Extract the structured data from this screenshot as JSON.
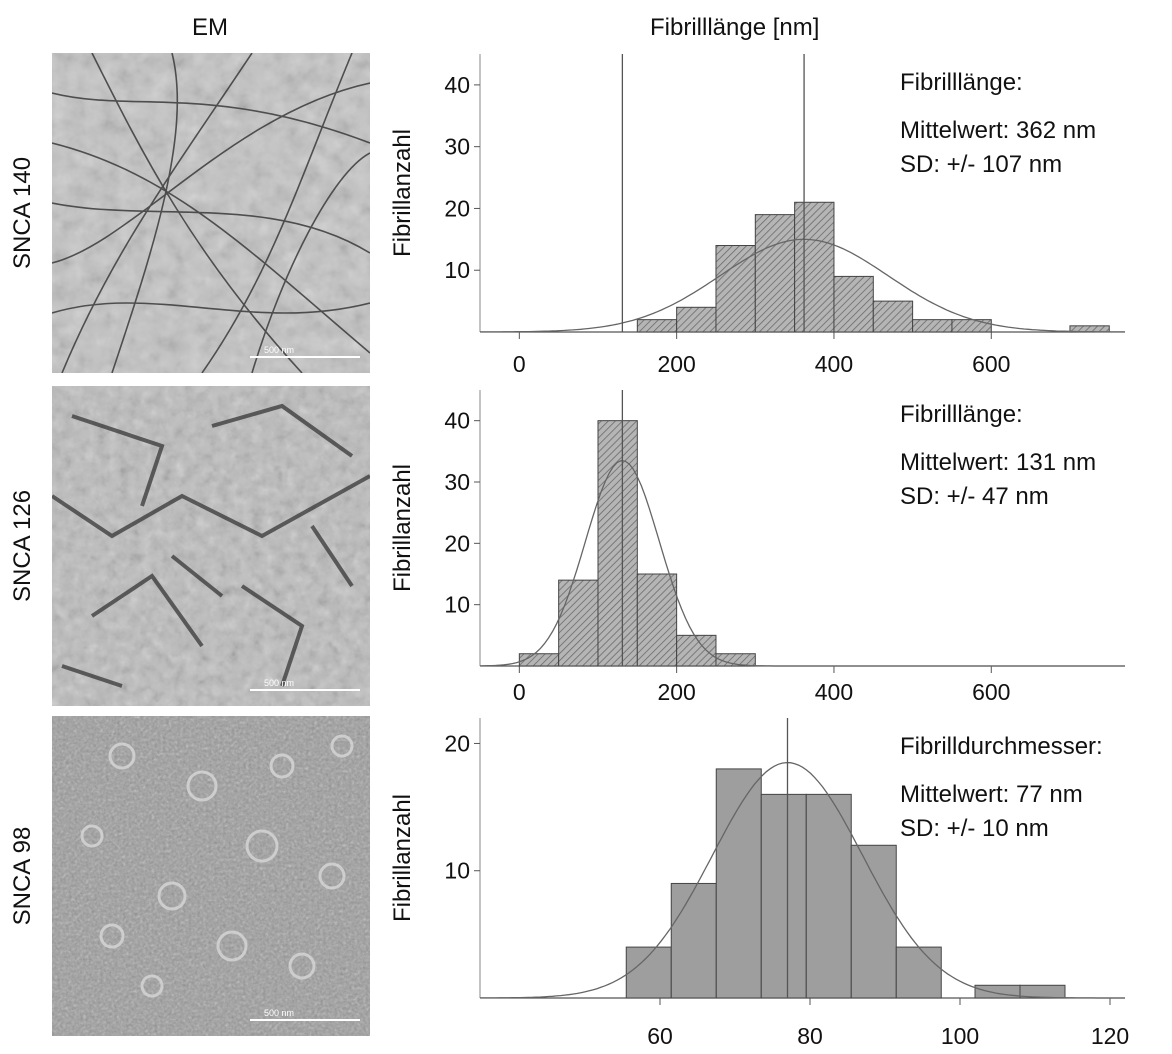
{
  "headers": {
    "em": "EM",
    "fibril": "Fibrilllänge [nm]"
  },
  "rows": [
    {
      "label": "SNCA 140",
      "scale_bar": "500 nm"
    },
    {
      "label": "SNCA 126",
      "scale_bar": "500 nm"
    },
    {
      "label": "SNCA 98",
      "scale_bar": "500 nm"
    }
  ],
  "colors": {
    "bar_fill": "#9e9e9e",
    "hatch": "#6a6a6a",
    "line": "#555555",
    "curve": "#666666"
  },
  "chart_data": [
    {
      "type": "bar",
      "subtype": "histogram",
      "ylabel": "Fibrillanzahl",
      "xticks": [
        0,
        200,
        400,
        600
      ],
      "yticks": [
        10,
        20,
        30,
        40
      ],
      "xlim": [
        -50,
        770
      ],
      "ylim": [
        0,
        45
      ],
      "hatched": true,
      "bins": [
        {
          "x0": 150,
          "x1": 200,
          "count": 2
        },
        {
          "x0": 200,
          "x1": 250,
          "count": 4
        },
        {
          "x0": 250,
          "x1": 300,
          "count": 14
        },
        {
          "x0": 300,
          "x1": 350,
          "count": 19
        },
        {
          "x0": 350,
          "x1": 400,
          "count": 21
        },
        {
          "x0": 400,
          "x1": 450,
          "count": 9
        },
        {
          "x0": 450,
          "x1": 500,
          "count": 5
        },
        {
          "x0": 500,
          "x1": 550,
          "count": 2
        },
        {
          "x0": 550,
          "x1": 600,
          "count": 2
        },
        {
          "x0": 700,
          "x1": 750,
          "count": 1
        }
      ],
      "vlines": [
        131,
        362
      ],
      "normal_curve": {
        "mean": 362,
        "sd": 107,
        "peak": 15
      },
      "annotation": [
        "Fibrilllänge:",
        "Mittelwert: 362 nm",
        "SD: +/- 107 nm"
      ]
    },
    {
      "type": "bar",
      "subtype": "histogram",
      "ylabel": "Fibrillanzahl",
      "xticks": [
        0,
        200,
        400,
        600
      ],
      "yticks": [
        10,
        20,
        30,
        40
      ],
      "xlim": [
        -50,
        770
      ],
      "ylim": [
        0,
        45
      ],
      "hatched": true,
      "bins": [
        {
          "x0": 0,
          "x1": 50,
          "count": 2
        },
        {
          "x0": 50,
          "x1": 100,
          "count": 14
        },
        {
          "x0": 100,
          "x1": 150,
          "count": 40
        },
        {
          "x0": 150,
          "x1": 200,
          "count": 15
        },
        {
          "x0": 200,
          "x1": 250,
          "count": 5
        },
        {
          "x0": 250,
          "x1": 300,
          "count": 2
        }
      ],
      "vlines": [
        131
      ],
      "normal_curve": {
        "mean": 131,
        "sd": 47,
        "peak": 33.5
      },
      "annotation": [
        "Fibrilllänge:",
        "Mittelwert: 131 nm",
        "SD: +/- 47 nm"
      ]
    },
    {
      "type": "bar",
      "subtype": "histogram",
      "ylabel": "Fibrillanzahl",
      "xticks": [
        60,
        80,
        100,
        120
      ],
      "yticks": [
        10,
        20
      ],
      "xlim": [
        36,
        122
      ],
      "ylim": [
        0,
        22
      ],
      "hatched": false,
      "bins": [
        {
          "x0": 55.5,
          "x1": 61.5,
          "count": 4
        },
        {
          "x0": 61.5,
          "x1": 67.5,
          "count": 9
        },
        {
          "x0": 67.5,
          "x1": 73.5,
          "count": 18
        },
        {
          "x0": 73.5,
          "x1": 79.5,
          "count": 16
        },
        {
          "x0": 79.5,
          "x1": 85.5,
          "count": 16
        },
        {
          "x0": 85.5,
          "x1": 91.5,
          "count": 12
        },
        {
          "x0": 91.5,
          "x1": 97.5,
          "count": 4
        },
        {
          "x0": 102,
          "x1": 108,
          "count": 1
        },
        {
          "x0": 108,
          "x1": 114,
          "count": 1
        }
      ],
      "vlines": [
        77
      ],
      "normal_curve": {
        "mean": 77,
        "sd": 10,
        "peak": 18.5
      },
      "annotation": [
        "Fibrilldurchmesser:",
        "Mittelwert: 77 nm",
        "SD: +/- 10 nm"
      ]
    }
  ]
}
